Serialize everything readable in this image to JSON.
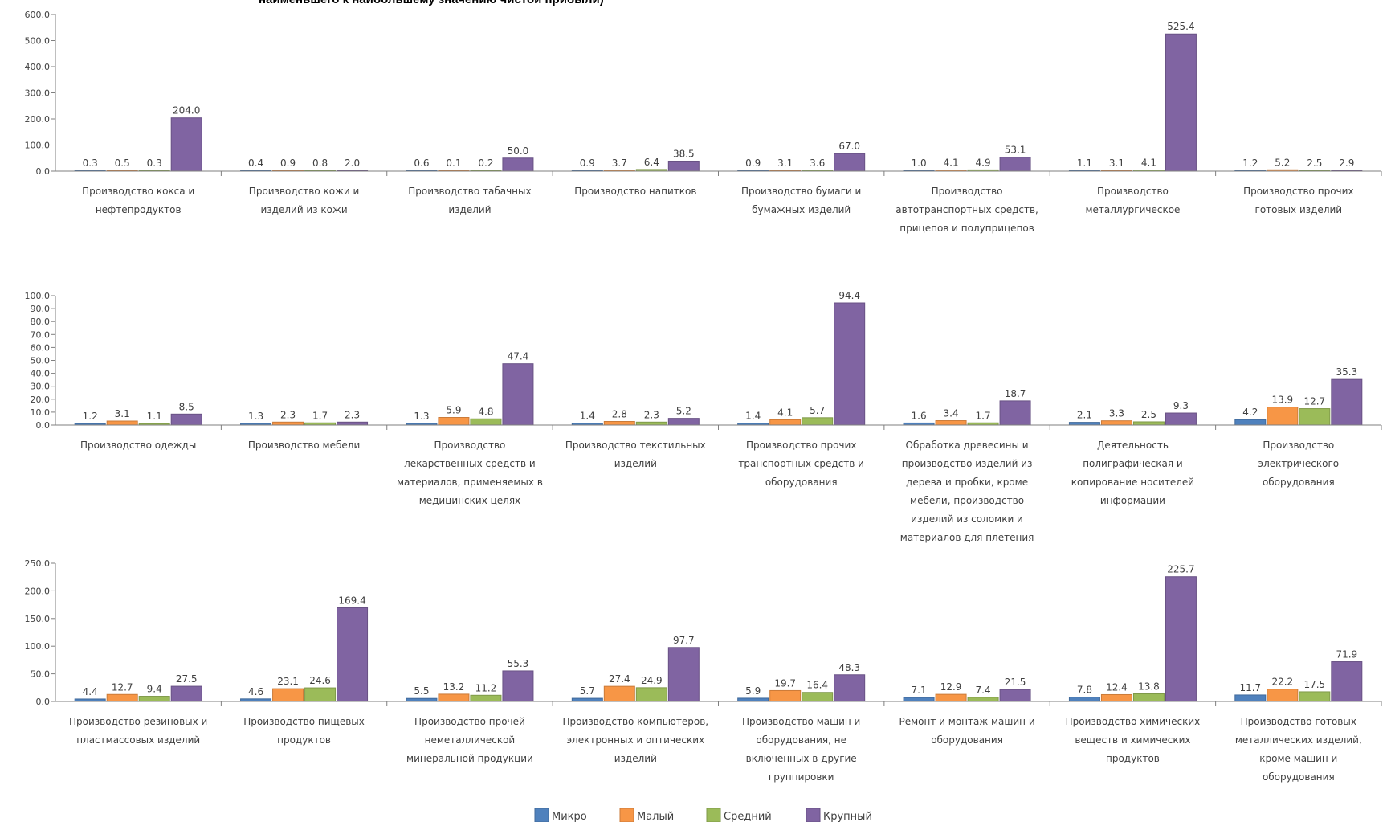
{
  "title": "наименьшего к наибольшему значению чистой прибыли)",
  "colors": {
    "Микро": "#4f81bd",
    "Малый": "#f79646",
    "Средний": "#9bbb59",
    "Крупный": "#8064a2"
  },
  "chart_data": [
    {
      "type": "bar",
      "ylim": [
        0,
        600
      ],
      "ticks": [
        0,
        100,
        200,
        300,
        400,
        500,
        600
      ],
      "categories": [
        "Производство кокса и нефтепродуктов",
        "Производство кожи и изделий из кожи",
        "Производство табачных изделий",
        "Производство напитков",
        "Производство бумаги и бумажных изделий",
        "Производство автотранспортных средств, прицепов и полуприцепов",
        "Производство металлургическое",
        "Производство прочих готовых изделий"
      ],
      "series": [
        {
          "name": "Микро",
          "values": [
            0.3,
            0.4,
            0.6,
            0.9,
            0.9,
            1.0,
            1.1,
            1.2
          ]
        },
        {
          "name": "Малый",
          "values": [
            0.5,
            0.9,
            0.1,
            3.7,
            3.1,
            4.1,
            3.1,
            5.2
          ]
        },
        {
          "name": "Средний",
          "values": [
            0.3,
            0.8,
            0.2,
            6.4,
            3.6,
            4.9,
            4.1,
            2.5
          ]
        },
        {
          "name": "Крупный",
          "values": [
            204.0,
            2.0,
            50.0,
            38.5,
            67.0,
            53.1,
            525.4,
            2.9
          ]
        }
      ]
    },
    {
      "type": "bar",
      "ylim": [
        0,
        100
      ],
      "ticks": [
        0,
        10,
        20,
        30,
        40,
        50,
        60,
        70,
        80,
        90,
        100
      ],
      "categories": [
        "Производство одежды",
        "Производство мебели",
        "Производство лекарственных средств и материалов, применяемых в медицинских целях",
        "Производство текстильных изделий",
        "Производство прочих транспортных средств и оборудования",
        "Обработка древесины и производство изделий из дерева и пробки, кроме мебели, производство изделий из соломки и материалов для плетения",
        "Деятельность полиграфическая и копирование носителей информации",
        "Производство электрического оборудования"
      ],
      "series": [
        {
          "name": "Микро",
          "values": [
            1.2,
            1.3,
            1.3,
            1.4,
            1.4,
            1.6,
            2.1,
            4.2
          ]
        },
        {
          "name": "Малый",
          "values": [
            3.1,
            2.3,
            5.9,
            2.8,
            4.1,
            3.4,
            3.3,
            13.9
          ]
        },
        {
          "name": "Средний",
          "values": [
            1.1,
            1.7,
            4.8,
            2.3,
            5.7,
            1.7,
            2.5,
            12.7
          ]
        },
        {
          "name": "Крупный",
          "values": [
            8.5,
            2.3,
            47.4,
            5.2,
            94.4,
            18.7,
            9.3,
            35.3
          ]
        }
      ]
    },
    {
      "type": "bar",
      "ylim": [
        0,
        250
      ],
      "ticks": [
        0,
        50,
        100,
        150,
        200,
        250
      ],
      "categories": [
        "Производство резиновых и пластмассовых изделий",
        "Производство пищевых продуктов",
        "Производство прочей неметаллической минеральной продукции",
        "Производство компьютеров, электронных и оптических изделий",
        "Производство машин и оборудования, не включенных в другие группировки",
        "Ремонт и монтаж машин и оборудования",
        "Производство химических веществ и химических продуктов",
        "Производство готовых металлических изделий, кроме машин и оборудования"
      ],
      "series": [
        {
          "name": "Микро",
          "values": [
            4.4,
            4.6,
            5.5,
            5.7,
            5.9,
            7.1,
            7.8,
            11.7
          ]
        },
        {
          "name": "Малый",
          "values": [
            12.7,
            23.1,
            13.2,
            27.4,
            19.7,
            12.9,
            12.4,
            22.2
          ]
        },
        {
          "name": "Средний",
          "values": [
            9.4,
            24.6,
            11.2,
            24.9,
            16.4,
            7.4,
            13.8,
            17.5
          ]
        },
        {
          "name": "Крупный",
          "values": [
            27.5,
            169.4,
            55.3,
            97.7,
            48.3,
            21.5,
            225.7,
            71.9
          ]
        }
      ]
    }
  ],
  "legend": [
    "Микро",
    "Малый",
    "Средний",
    "Крупный"
  ]
}
